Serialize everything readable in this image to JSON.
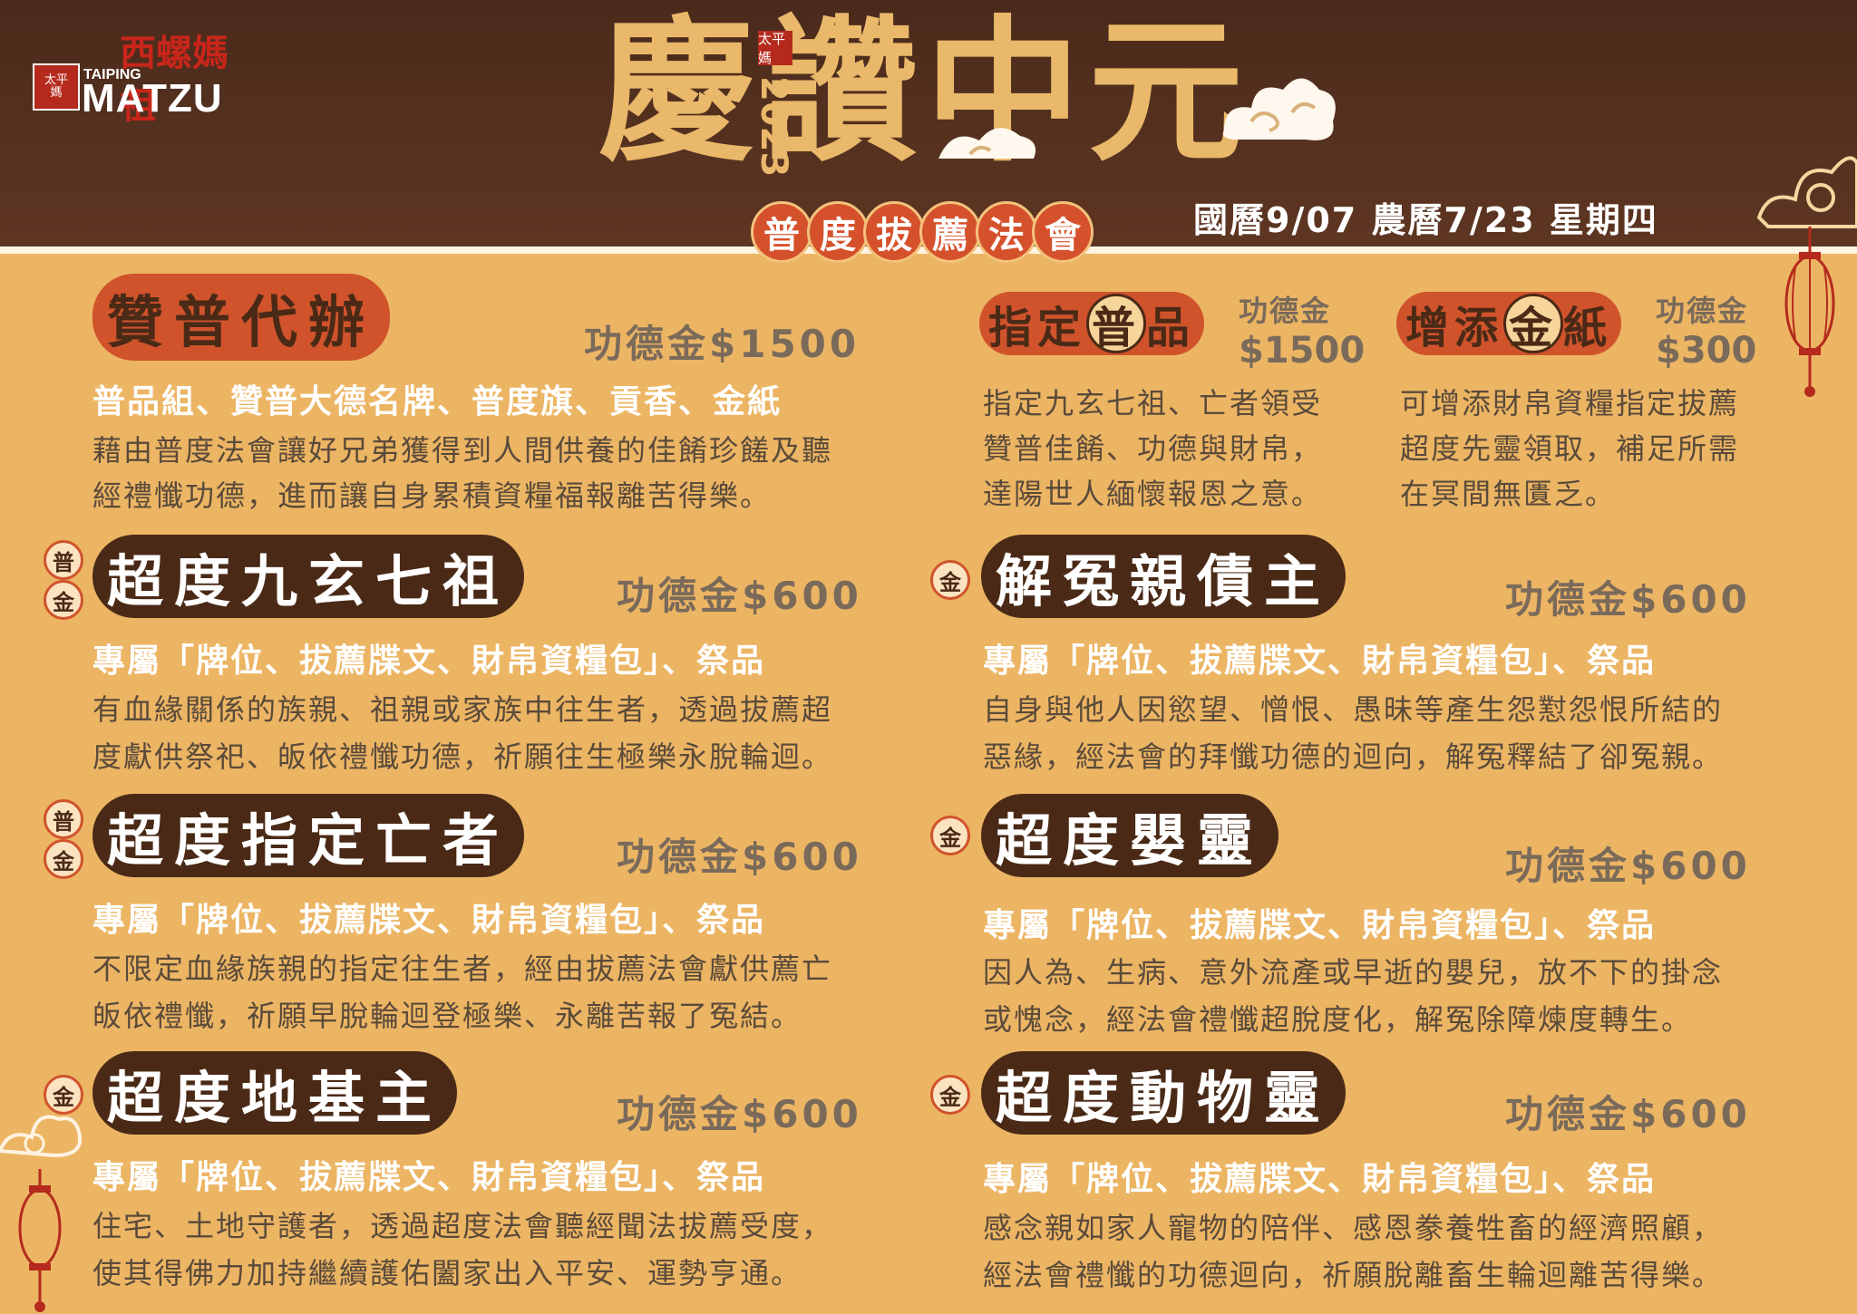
{
  "logo": {
    "seal_text": "太平\n媽",
    "small": "TAIPING",
    "main": "MATZU",
    "red_text": "西螺媽祖"
  },
  "header": {
    "title": "慶讚中元",
    "year_seal": "太平媽",
    "year": "2023",
    "subtitle_chars": [
      "普",
      "度",
      "拔",
      "薦",
      "法",
      "會"
    ],
    "date_line": "國曆9/07  農曆7/23  星期四"
  },
  "sections": {
    "zanpu": {
      "title": "贊普代辦",
      "price": "功德金$1500",
      "line1": "普品組、贊普大德名牌、普度旗、貢香、金紙",
      "line2": "藉由普度法會讓好兄弟獲得到人間供養的佳餚珍饈及聽",
      "line3": "經禮懺功德，進而讓自身累積資糧福報離苦得樂。"
    },
    "zhiding": {
      "t1": "指定",
      "t2": "普",
      "t3": "品",
      "price_a": "功德金",
      "price_b": "$1500",
      "line1": "指定九玄七祖、亡者領受",
      "line2": "贊普佳餚、功德與財帛，",
      "line3": "達陽世人緬懷報恩之意。"
    },
    "zengtian": {
      "t1": "增添",
      "t2": "金",
      "t3": "紙",
      "price_a": "功德金",
      "price_b": "$300",
      "line1": "可增添財帛資糧指定拔薦",
      "line2": "超度先靈領取，補足所需",
      "line3": "在冥間無匱乏。"
    },
    "jiuxuan": {
      "badge1": "普",
      "badge2": "金",
      "title": "超度九玄七祖",
      "price": "功德金$600",
      "line1": "專屬「牌位、拔薦牒文、財帛資糧包」、祭品",
      "line2": "有血緣關係的族親、祖親或家族中往生者，透過拔薦超",
      "line3": "度獻供祭祀、皈依禮懺功德，祈願往生極樂永脫輪迴。"
    },
    "jieyuan": {
      "badge1": "金",
      "title": "解冤親債主",
      "price": "功德金$600",
      "line1": "專屬「牌位、拔薦牒文、財帛資糧包」、祭品",
      "line2": "自身與他人因慾望、憎恨、愚昧等產生怨懟怨恨所結的",
      "line3": "惡緣，經法會的拜懺功德的迴向，解冤釋結了卻冤親。"
    },
    "zhidingwang": {
      "badge1": "普",
      "badge2": "金",
      "title": "超度指定亡者",
      "price": "功德金$600",
      "line1": "專屬「牌位、拔薦牒文、財帛資糧包」、祭品",
      "line2": "不限定血緣族親的指定往生者，經由拔薦法會獻供薦亡",
      "line3": "皈依禮懺，祈願早脫輪迴登極樂、永離苦報了冤結。"
    },
    "yingling": {
      "badge1": "金",
      "title": "超度嬰靈",
      "price": "功德金$600",
      "line1": "專屬「牌位、拔薦牒文、財帛資糧包」、祭品",
      "line2": "因人為、生病、意外流產或早逝的嬰兒，放不下的掛念",
      "line3": "或愧念，經法會禮懺超脫度化，解冤除障煉度轉生。"
    },
    "diji": {
      "badge1": "金",
      "title": "超度地基主",
      "price": "功德金$600",
      "line1": "專屬「牌位、拔薦牒文、財帛資糧包」、祭品",
      "line2": "住宅、土地守護者，透過超度法會聽經聞法拔薦受度，",
      "line3": "使其得佛力加持繼續護佑闔家出入平安、運勢亨通。"
    },
    "dongwu": {
      "badge1": "金",
      "title": "超度動物靈",
      "price": "功德金$600",
      "line1": "專屬「牌位、拔薦牒文、財帛資糧包」、祭品",
      "line2": "感念親如家人寵物的陪伴、感恩豢養牲畜的經濟照顧，",
      "line3": "經法會禮懺的功德迴向，祈願脫離畜生輪迴離苦得樂。"
    }
  },
  "colors": {
    "background": "#ecb564",
    "header": "#4a2a1b",
    "dark_pill": "#4a2a16",
    "accent": "#d0532c",
    "gold": "#e9b86a"
  },
  "icons": [
    "cloud-icon",
    "lantern-icon"
  ]
}
